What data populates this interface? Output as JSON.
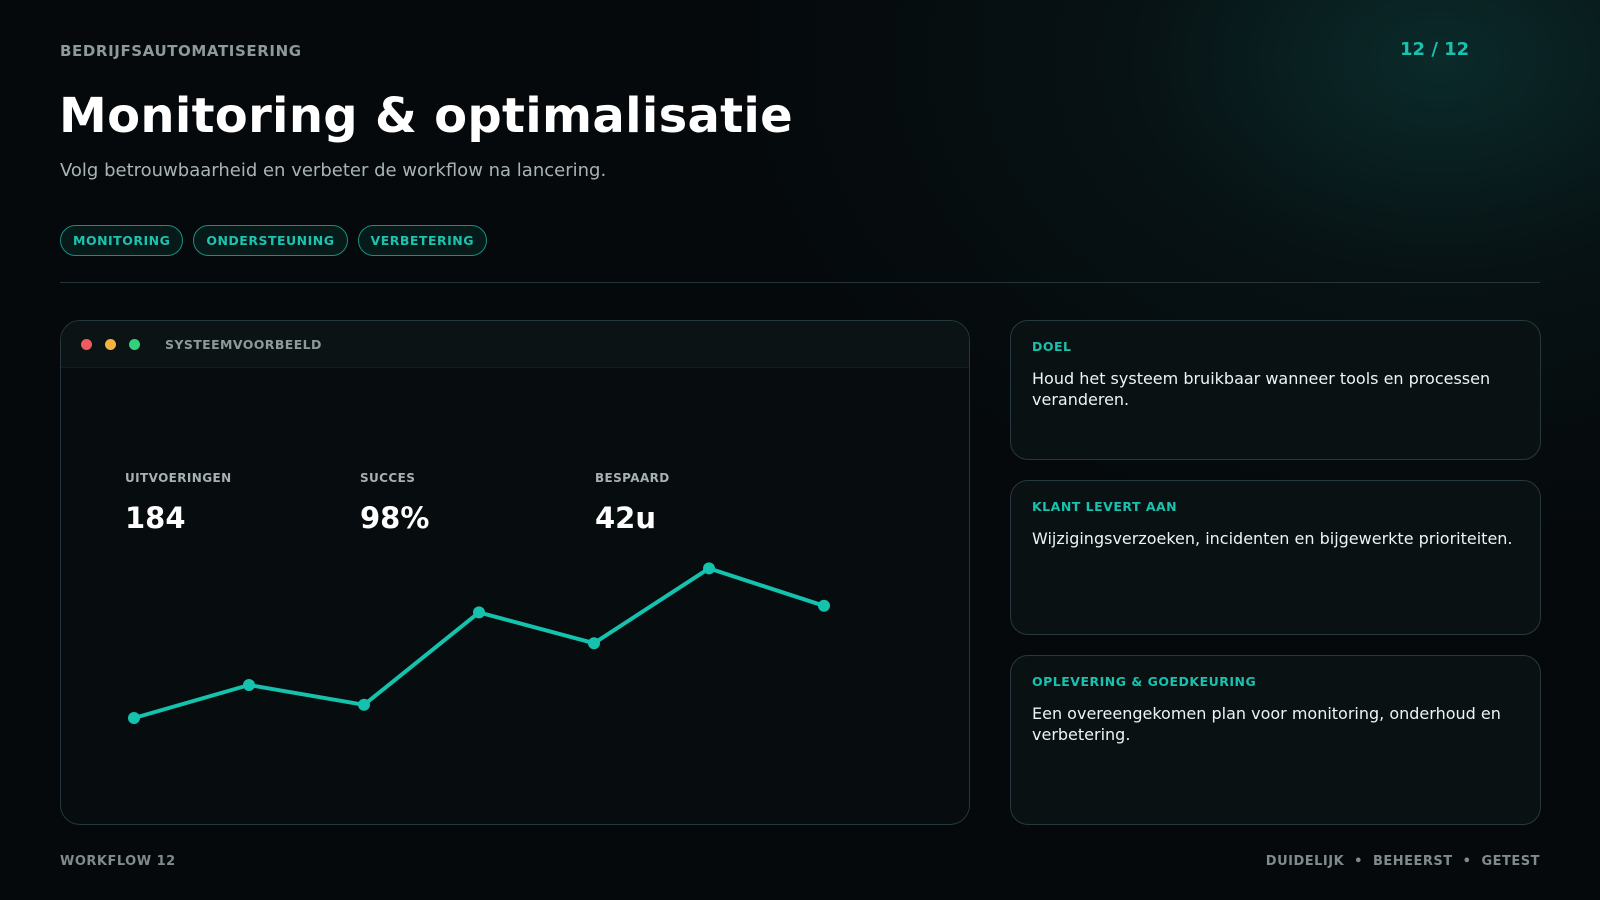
{
  "header": {
    "eyebrow": "BEDRIJFSAUTOMATISERING",
    "pager": "12 / 12",
    "title": "Monitoring & optimalisatie",
    "subtitle": "Volg betrouwbaarheid en verbeter de workflow na lancering."
  },
  "tags": [
    "MONITORING",
    "ONDERSTEUNING",
    "VERBETERING"
  ],
  "preview": {
    "label": "SYSTEEMVOORBEELD",
    "stats": [
      {
        "label": "UITVOERINGEN",
        "value": "184"
      },
      {
        "label": "SUCCES",
        "value": "98%"
      },
      {
        "label": "BESPAARD",
        "value": "42u"
      }
    ]
  },
  "chart_data": {
    "type": "line",
    "x": [
      1,
      2,
      3,
      4,
      5,
      6,
      7
    ],
    "series": [
      {
        "values": [
          10,
          25,
          16,
          58,
          44,
          78,
          61
        ]
      }
    ],
    "ylim": [
      0,
      100
    ],
    "grid": false,
    "color": "#14c2ae"
  },
  "cards": [
    {
      "label": "DOEL",
      "text": "Houd het systeem bruikbaar wanneer tools en processen veranderen."
    },
    {
      "label": "KLANT LEVERT AAN",
      "text": "Wijzigingsverzoeken, incidenten en bijgewerkte prioriteiten."
    },
    {
      "label": "OPLEVERING & GOEDKEURING",
      "text": "Een overeengekomen plan voor monitoring, onderhoud en verbetering."
    }
  ],
  "footer": {
    "left": "WORKFLOW 12",
    "right": [
      "DUIDELIJK",
      "•",
      "BEHEERST",
      "•",
      "GETEST"
    ]
  },
  "colors": {
    "accent": "#19c2ae",
    "background": "#05090b",
    "window_red": "#ef5b5b",
    "window_yellow": "#f3b33c",
    "window_green": "#2fd17c"
  }
}
